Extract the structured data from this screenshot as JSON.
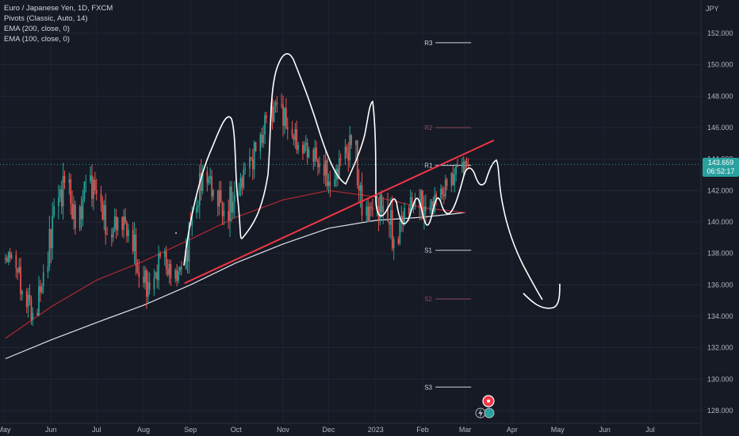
{
  "legend": {
    "symbol": "Euro / Japanese Yen, 1D, FXCM",
    "ind1": "Pivots (Classic, Auto, 14)",
    "ind2": "EMA (200, close, 0)",
    "ind3": "EMA (100, close, 0)"
  },
  "price_axis": {
    "currency": "JPY"
  },
  "last_price": {
    "value": "143.659",
    "countdown": "06:52:17"
  },
  "colors": {
    "background": "#161a25",
    "up_candle": "#26a69a",
    "down_candle": "#ef5350",
    "ema_200": "#e0e3eb",
    "ema_100": "#b22833",
    "trendline": "#f23645",
    "drawing": "#ffffff",
    "pivot_r2_s2": "#8b4a5c",
    "last_price_line": "#2aa19e"
  },
  "chart_data": {
    "type": "candlestick",
    "title": "Euro / Japanese Yen, 1D, FXCM",
    "ylabel": "JPY",
    "ylim": [
      127.5,
      155
    ],
    "y_ticks": [
      "128.000",
      "130.000",
      "132.000",
      "134.000",
      "136.000",
      "138.000",
      "140.000",
      "142.000",
      "144.000",
      "146.000",
      "148.000",
      "150.000",
      "152.000"
    ],
    "x_ticks": [
      "May",
      "Jun",
      "Jul",
      "Aug",
      "Sep",
      "Oct",
      "Nov",
      "Dec",
      "2023",
      "Feb",
      "Mar",
      "Apr",
      "May",
      "Jun",
      "Jul"
    ],
    "pivots": [
      {
        "label": "R3",
        "value": 151.4
      },
      {
        "label": "R2",
        "value": 146.0
      },
      {
        "label": "R1",
        "value": 143.6
      },
      {
        "label": "S1",
        "value": 138.2
      },
      {
        "label": "S2",
        "value": 135.1
      },
      {
        "label": "S3",
        "value": 129.5
      }
    ],
    "candles": [
      {
        "date": "2022-05-02",
        "o": 137.6,
        "h": 138.4,
        "l": 137.0,
        "c": 137.9
      },
      {
        "date": "2022-05-09",
        "o": 137.9,
        "h": 138.2,
        "l": 135.0,
        "c": 135.6
      },
      {
        "date": "2022-05-16",
        "o": 135.6,
        "h": 136.8,
        "l": 133.4,
        "c": 134.2
      },
      {
        "date": "2022-05-23",
        "o": 134.2,
        "h": 137.3,
        "l": 134.0,
        "c": 136.8
      },
      {
        "date": "2022-05-30",
        "o": 136.8,
        "h": 141.5,
        "l": 136.4,
        "c": 141.0
      },
      {
        "date": "2022-06-06",
        "o": 141.0,
        "h": 144.2,
        "l": 140.0,
        "c": 142.5
      },
      {
        "date": "2022-06-13",
        "o": 142.5,
        "h": 143.4,
        "l": 139.2,
        "c": 139.6
      },
      {
        "date": "2022-06-20",
        "o": 139.6,
        "h": 143.0,
        "l": 139.4,
        "c": 142.6
      },
      {
        "date": "2022-06-27",
        "o": 142.6,
        "h": 144.3,
        "l": 140.6,
        "c": 141.8
      },
      {
        "date": "2022-07-04",
        "o": 141.8,
        "h": 142.3,
        "l": 138.5,
        "c": 139.2
      },
      {
        "date": "2022-07-11",
        "o": 139.2,
        "h": 141.0,
        "l": 138.2,
        "c": 140.3
      },
      {
        "date": "2022-07-18",
        "o": 140.3,
        "h": 141.6,
        "l": 138.7,
        "c": 139.5
      },
      {
        "date": "2022-07-25",
        "o": 139.5,
        "h": 140.0,
        "l": 135.8,
        "c": 136.5
      },
      {
        "date": "2022-08-01",
        "o": 136.5,
        "h": 137.2,
        "l": 133.4,
        "c": 135.7
      },
      {
        "date": "2022-08-08",
        "o": 135.7,
        "h": 138.5,
        "l": 135.3,
        "c": 137.8
      },
      {
        "date": "2022-08-15",
        "o": 137.8,
        "h": 138.8,
        "l": 135.8,
        "c": 136.4
      },
      {
        "date": "2022-08-22",
        "o": 136.4,
        "h": 137.9,
        "l": 135.9,
        "c": 137.0
      },
      {
        "date": "2022-08-29",
        "o": 137.0,
        "h": 141.0,
        "l": 136.6,
        "c": 140.6
      },
      {
        "date": "2022-09-05",
        "o": 140.6,
        "h": 144.6,
        "l": 140.2,
        "c": 143.2
      },
      {
        "date": "2022-09-12",
        "o": 143.2,
        "h": 144.1,
        "l": 141.3,
        "c": 142.0
      },
      {
        "date": "2022-09-19",
        "o": 142.0,
        "h": 143.2,
        "l": 139.8,
        "c": 140.7
      },
      {
        "date": "2022-09-26",
        "o": 140.7,
        "h": 142.6,
        "l": 137.4,
        "c": 141.7
      },
      {
        "date": "2022-10-03",
        "o": 141.7,
        "h": 143.8,
        "l": 141.3,
        "c": 143.4
      },
      {
        "date": "2022-10-10",
        "o": 143.4,
        "h": 145.2,
        "l": 141.5,
        "c": 144.5
      },
      {
        "date": "2022-10-17",
        "o": 144.5,
        "h": 147.0,
        "l": 144.0,
        "c": 146.6
      },
      {
        "date": "2022-10-24",
        "o": 146.6,
        "h": 148.0,
        "l": 145.2,
        "c": 147.5
      },
      {
        "date": "2022-10-31",
        "o": 147.5,
        "h": 148.5,
        "l": 144.9,
        "c": 145.9
      },
      {
        "date": "2022-11-07",
        "o": 145.9,
        "h": 146.8,
        "l": 144.0,
        "c": 144.9
      },
      {
        "date": "2022-11-14",
        "o": 144.9,
        "h": 145.8,
        "l": 143.3,
        "c": 144.6
      },
      {
        "date": "2022-11-21",
        "o": 144.6,
        "h": 145.6,
        "l": 142.9,
        "c": 143.7
      },
      {
        "date": "2022-11-28",
        "o": 143.7,
        "h": 145.1,
        "l": 141.5,
        "c": 142.3
      },
      {
        "date": "2022-12-05",
        "o": 142.3,
        "h": 144.7,
        "l": 142.0,
        "c": 144.0
      },
      {
        "date": "2022-12-12",
        "o": 144.0,
        "h": 146.6,
        "l": 142.9,
        "c": 144.9
      },
      {
        "date": "2022-12-19",
        "o": 144.9,
        "h": 145.2,
        "l": 139.6,
        "c": 140.4
      },
      {
        "date": "2022-12-26",
        "o": 140.4,
        "h": 142.9,
        "l": 140.0,
        "c": 140.8
      },
      {
        "date": "2023-01-02",
        "o": 140.8,
        "h": 142.0,
        "l": 138.2,
        "c": 141.0
      },
      {
        "date": "2023-01-09",
        "o": 141.0,
        "h": 142.4,
        "l": 137.4,
        "c": 138.9
      },
      {
        "date": "2023-01-16",
        "o": 138.9,
        "h": 141.7,
        "l": 138.5,
        "c": 140.9
      },
      {
        "date": "2023-01-23",
        "o": 140.9,
        "h": 142.2,
        "l": 139.8,
        "c": 141.4
      },
      {
        "date": "2023-01-30",
        "o": 141.4,
        "h": 142.1,
        "l": 137.9,
        "c": 140.7
      },
      {
        "date": "2023-02-06",
        "o": 140.7,
        "h": 142.3,
        "l": 139.9,
        "c": 141.5
      },
      {
        "date": "2023-02-13",
        "o": 141.5,
        "h": 143.0,
        "l": 140.5,
        "c": 142.3
      },
      {
        "date": "2023-02-20",
        "o": 142.3,
        "h": 144.0,
        "l": 141.4,
        "c": 143.5
      },
      {
        "date": "2023-02-27",
        "o": 143.5,
        "h": 144.3,
        "l": 142.4,
        "c": 143.66
      }
    ],
    "ema_200": [
      {
        "date": "2022-05-02",
        "v": 131.3
      },
      {
        "date": "2022-06-01",
        "v": 132.5
      },
      {
        "date": "2022-07-01",
        "v": 133.6
      },
      {
        "date": "2022-08-01",
        "v": 134.7
      },
      {
        "date": "2022-09-01",
        "v": 136.0
      },
      {
        "date": "2022-10-01",
        "v": 137.4
      },
      {
        "date": "2022-11-01",
        "v": 138.6
      },
      {
        "date": "2022-12-01",
        "v": 139.6
      },
      {
        "date": "2023-01-01",
        "v": 140.1
      },
      {
        "date": "2023-02-01",
        "v": 140.3
      },
      {
        "date": "2023-03-01",
        "v": 140.6
      }
    ],
    "ema_100": [
      {
        "date": "2022-05-02",
        "v": 132.6
      },
      {
        "date": "2022-06-01",
        "v": 134.6
      },
      {
        "date": "2022-07-01",
        "v": 136.3
      },
      {
        "date": "2022-08-01",
        "v": 137.5
      },
      {
        "date": "2022-09-01",
        "v": 138.9
      },
      {
        "date": "2022-10-01",
        "v": 140.3
      },
      {
        "date": "2022-11-01",
        "v": 141.4
      },
      {
        "date": "2022-12-01",
        "v": 142.0
      },
      {
        "date": "2023-01-01",
        "v": 141.6
      },
      {
        "date": "2023-02-01",
        "v": 140.9
      },
      {
        "date": "2023-03-01",
        "v": 140.6
      }
    ],
    "trendline": [
      {
        "date": "2022-08-28",
        "v": 136.1
      },
      {
        "date": "2023-03-20",
        "v": 145.2
      }
    ],
    "x_range": [
      "2022-05-01",
      "2023-07-24"
    ],
    "last_price": 143.659
  }
}
